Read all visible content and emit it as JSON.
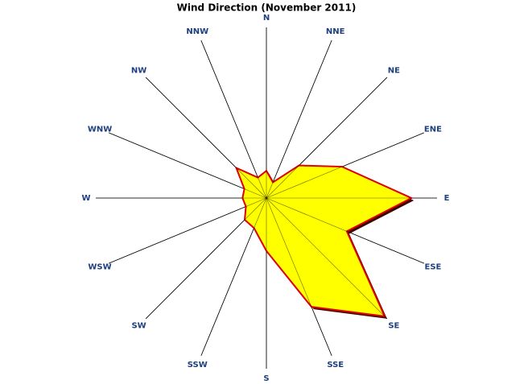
{
  "chart_data": {
    "type": "radar",
    "title": "Wind Direction (November 2011)",
    "categories": [
      "N",
      "NNE",
      "NE",
      "ENE",
      "E",
      "ESE",
      "SE",
      "SSE",
      "S",
      "SSW",
      "SW",
      "WSW",
      "W",
      "WNW",
      "NW",
      "NNW"
    ],
    "values": [
      16,
      10,
      27,
      48,
      85,
      51,
      98,
      69,
      31,
      19,
      18,
      13,
      14,
      14,
      25,
      13
    ],
    "color": "#ffff00",
    "edge_color": "#e00000",
    "shadow_color": "#400000",
    "label_color": "#1f3f7f",
    "rlim": [
      0,
      100
    ]
  }
}
